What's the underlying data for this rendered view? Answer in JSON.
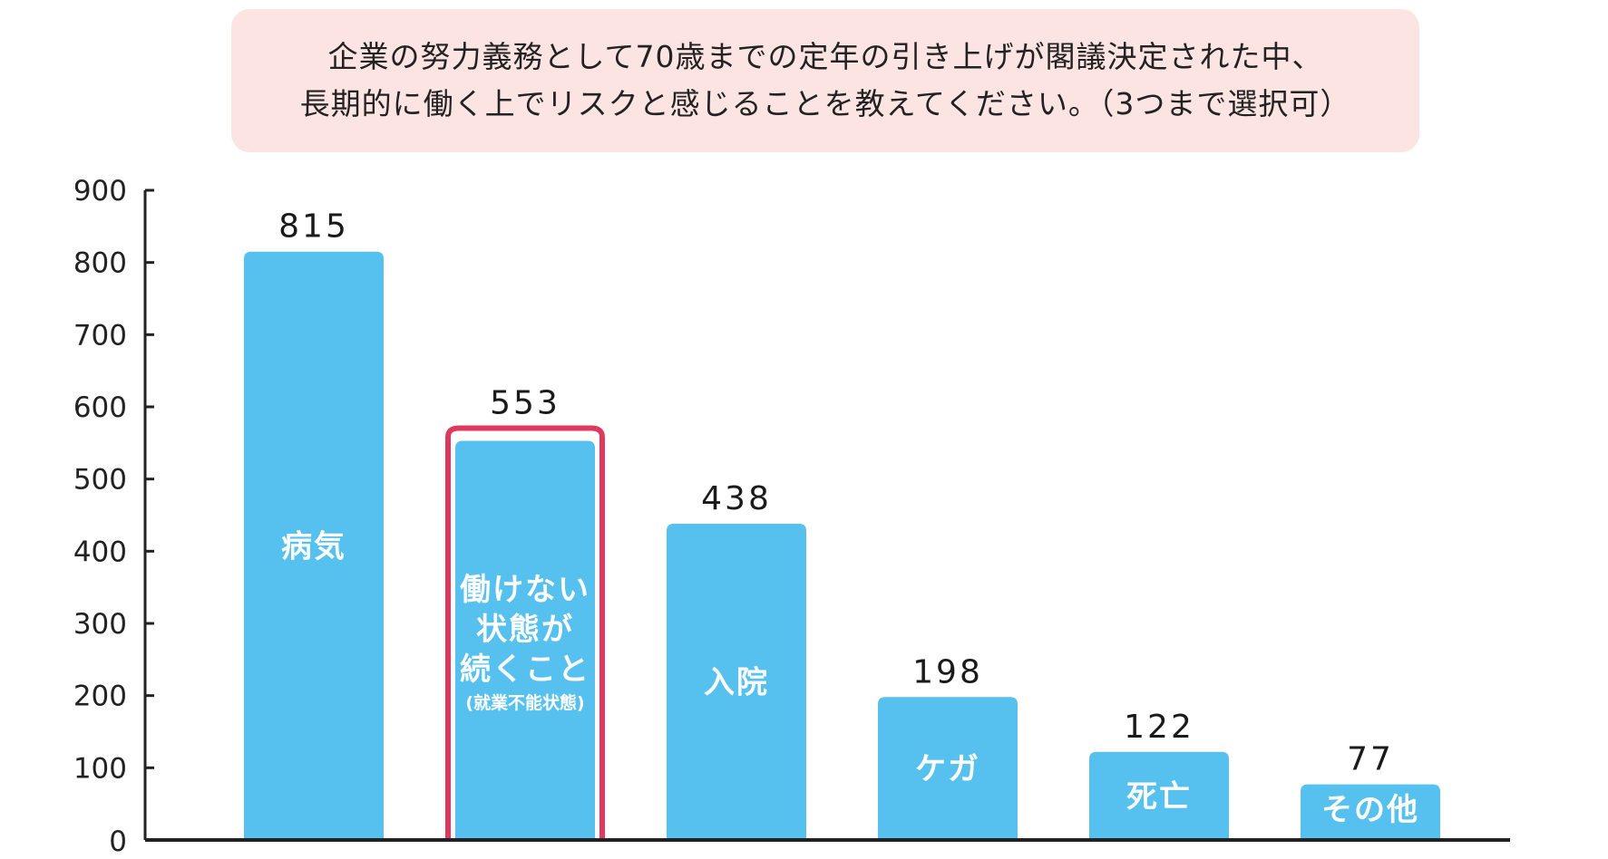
{
  "question": {
    "line1": "企業の努力義務として70歳までの定年の引き上げが閣議決定された中、",
    "line2": "長期的に働く上でリスクと感じることを教えてください。（3つまで選択可）"
  },
  "colors": {
    "bar": "#56c1ef",
    "highlight_border": "#e0395e",
    "title_background": "#fbe4e2",
    "axis": "#222222"
  },
  "chart_data": {
    "type": "bar",
    "ylim": [
      0,
      900
    ],
    "yticks": [
      0,
      100,
      200,
      300,
      400,
      500,
      600,
      700,
      800,
      900
    ],
    "grid": false,
    "bars": [
      {
        "label_lines": [
          "病気"
        ],
        "note": "",
        "value": 815,
        "highlight": false
      },
      {
        "label_lines": [
          "働けない",
          "状態が",
          "続くこと"
        ],
        "note": "(就業不能状態)",
        "value": 553,
        "highlight": true
      },
      {
        "label_lines": [
          "入院"
        ],
        "note": "",
        "value": 438,
        "highlight": false
      },
      {
        "label_lines": [
          "ケガ"
        ],
        "note": "",
        "value": 198,
        "highlight": false
      },
      {
        "label_lines": [
          "死亡"
        ],
        "note": "",
        "value": 122,
        "highlight": false
      },
      {
        "label_lines": [
          "その他"
        ],
        "note": "",
        "value": 77,
        "highlight": false
      }
    ]
  }
}
